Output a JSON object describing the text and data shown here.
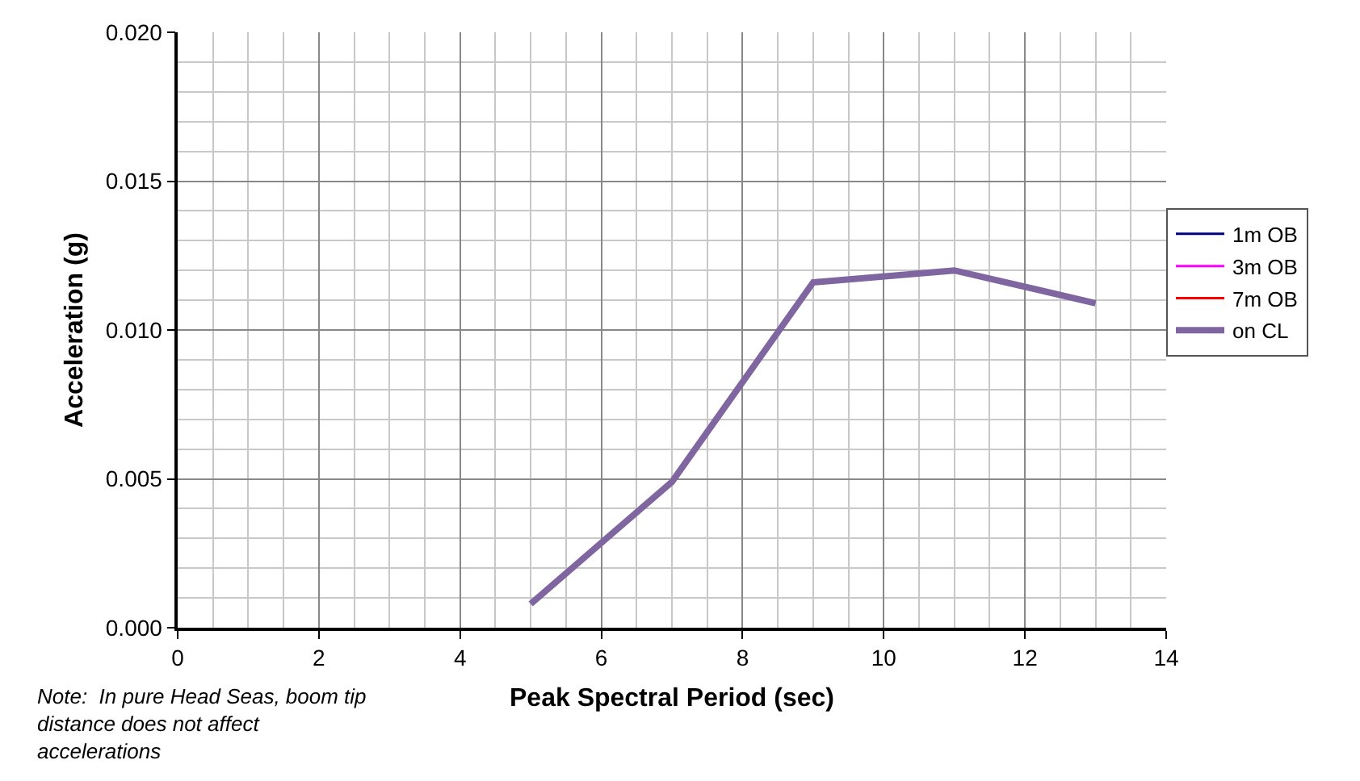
{
  "chart_data": {
    "type": "line",
    "xlabel": "Peak Spectral Period (sec)",
    "ylabel": "Acceleration (g)",
    "x": [
      5,
      7,
      9,
      11,
      13
    ],
    "series": [
      {
        "name": "1m OB",
        "color": "#000080",
        "values": [
          null,
          null,
          null,
          null,
          null
        ]
      },
      {
        "name": "3m OB",
        "color": "#ff00ff",
        "values": [
          null,
          null,
          null,
          null,
          null
        ]
      },
      {
        "name": "7m OB",
        "color": "#ff0000",
        "values": [
          null,
          null,
          null,
          null,
          null
        ]
      },
      {
        "name": "on CL",
        "color": "#8066a0",
        "values": [
          0.0008,
          0.0049,
          0.0116,
          0.012,
          0.0109
        ]
      }
    ],
    "xlim": [
      0,
      14
    ],
    "xticks": [
      0,
      2,
      4,
      6,
      8,
      10,
      12,
      14
    ],
    "ylim": [
      0,
      0.02
    ],
    "yticks": [
      {
        "value": 0,
        "label": "0.000"
      },
      {
        "value": 0.005,
        "label": "0.005"
      },
      {
        "value": 0.01,
        "label": "0.010"
      },
      {
        "value": 0.015,
        "label": "0.015"
      },
      {
        "value": 0.02,
        "label": "0.020"
      }
    ],
    "grid": true,
    "legend": "right",
    "marker": "none",
    "line_style": "solid",
    "annotations": [
      "Note:  In pure Head Seas, boom tip distance does not affect accelerations"
    ]
  }
}
